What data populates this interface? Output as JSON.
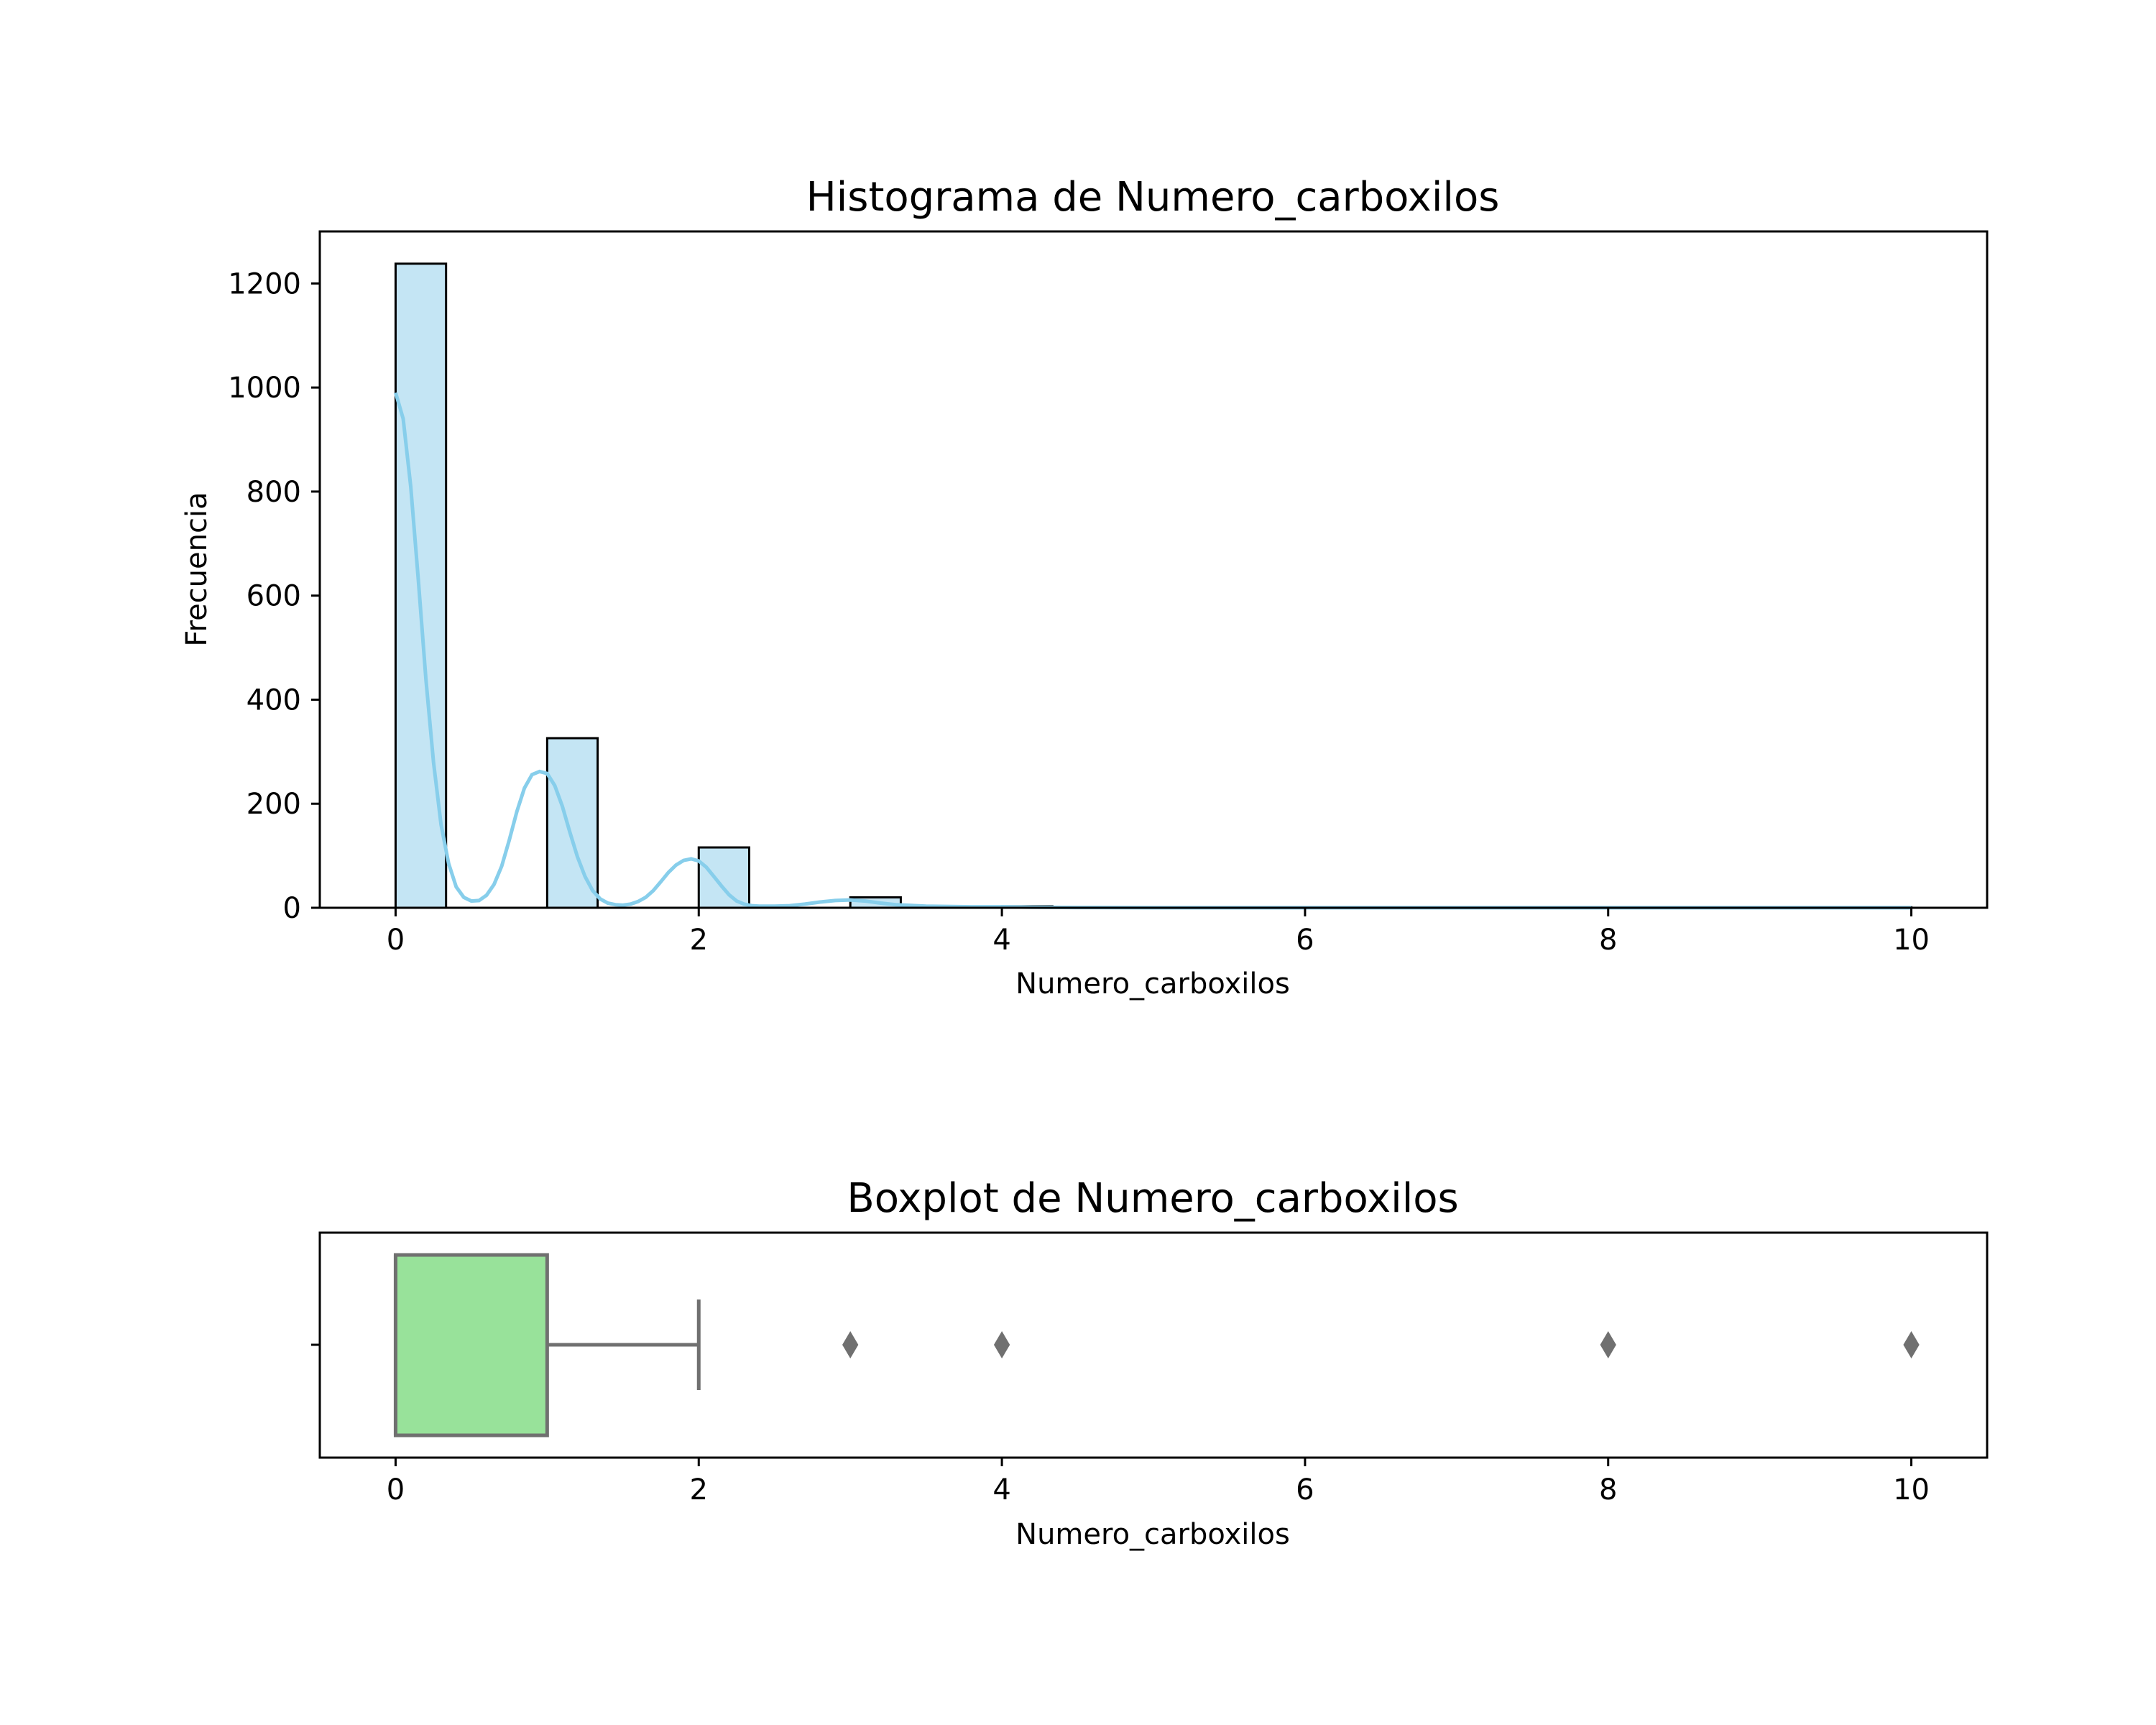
{
  "chart_data": [
    {
      "type": "bar",
      "subtype": "histogram",
      "title": "Histograma de Numero_carboxilos",
      "xlabel": "Numero_carboxilos",
      "ylabel": "Frecuencia",
      "xlim": [
        -0.5,
        10.5
      ],
      "ylim": [
        0,
        1300
      ],
      "xticks": [
        0,
        2,
        4,
        6,
        8,
        10
      ],
      "yticks": [
        0,
        200,
        400,
        600,
        800,
        1000,
        1200
      ],
      "bins": [
        {
          "x0": 0.0,
          "x1": 0.333,
          "count": 1238
        },
        {
          "x0": 1.0,
          "x1": 1.333,
          "count": 326
        },
        {
          "x0": 2.0,
          "x1": 2.333,
          "count": 116
        },
        {
          "x0": 3.0,
          "x1": 3.333,
          "count": 20
        },
        {
          "x0": 4.0,
          "x1": 4.333,
          "count": 3
        },
        {
          "x0": 8.0,
          "x1": 8.333,
          "count": 1
        },
        {
          "x0": 9.667,
          "x1": 10.0,
          "count": 1
        }
      ],
      "kde": {
        "x": [
          0,
          0.05,
          0.1,
          0.15,
          0.2,
          0.25,
          0.3,
          0.35,
          0.4,
          0.45,
          0.5,
          0.55,
          0.6,
          0.65,
          0.7,
          0.75,
          0.8,
          0.85,
          0.9,
          0.95,
          1.0,
          1.05,
          1.1,
          1.15,
          1.2,
          1.25,
          1.3,
          1.35,
          1.4,
          1.45,
          1.5,
          1.55,
          1.6,
          1.65,
          1.7,
          1.75,
          1.8,
          1.85,
          1.9,
          1.95,
          2.0,
          2.05,
          2.1,
          2.15,
          2.2,
          2.25,
          2.3,
          2.35,
          2.4,
          2.5,
          2.6,
          2.7,
          2.8,
          2.9,
          3.0,
          3.1,
          3.2,
          3.3,
          3.5,
          3.8,
          4.0,
          4.2,
          4.5,
          5,
          6,
          7,
          8,
          9,
          10
        ],
        "y": [
          990,
          940,
          810,
          630,
          440,
          280,
          160,
          85,
          40,
          20,
          13,
          14,
          24,
          45,
          80,
          130,
          185,
          230,
          256,
          262,
          258,
          235,
          195,
          145,
          98,
          60,
          33,
          17,
          9,
          6,
          5,
          7,
          12,
          20,
          33,
          50,
          68,
          82,
          91,
          94,
          90,
          78,
          60,
          42,
          25,
          13,
          7,
          4,
          3,
          3,
          4,
          7,
          11,
          14,
          15,
          13,
          9,
          6,
          3,
          2,
          2,
          1,
          0.5,
          0.2,
          0.1,
          0.1,
          0.2,
          0.1,
          0.1
        ]
      },
      "colors": {
        "bar_fill": "#c4e5f4",
        "bar_edge": "#000000",
        "kde_line": "#87ceeb"
      },
      "grid": false
    },
    {
      "type": "boxplot",
      "title": "Boxplot de Numero_carboxilos",
      "xlabel": "Numero_carboxilos",
      "xlim": [
        -0.5,
        10.5
      ],
      "xticks": [
        0,
        2,
        4,
        6,
        8,
        10
      ],
      "box": {
        "q1": 0,
        "median": 0,
        "q3": 1,
        "whisker_low": 0,
        "whisker_high": 2
      },
      "outliers": [
        3,
        4,
        8,
        10
      ],
      "colors": {
        "box_fill": "#98e29a",
        "box_edge": "#707070",
        "outlier": "#707070"
      },
      "grid": false
    }
  ]
}
